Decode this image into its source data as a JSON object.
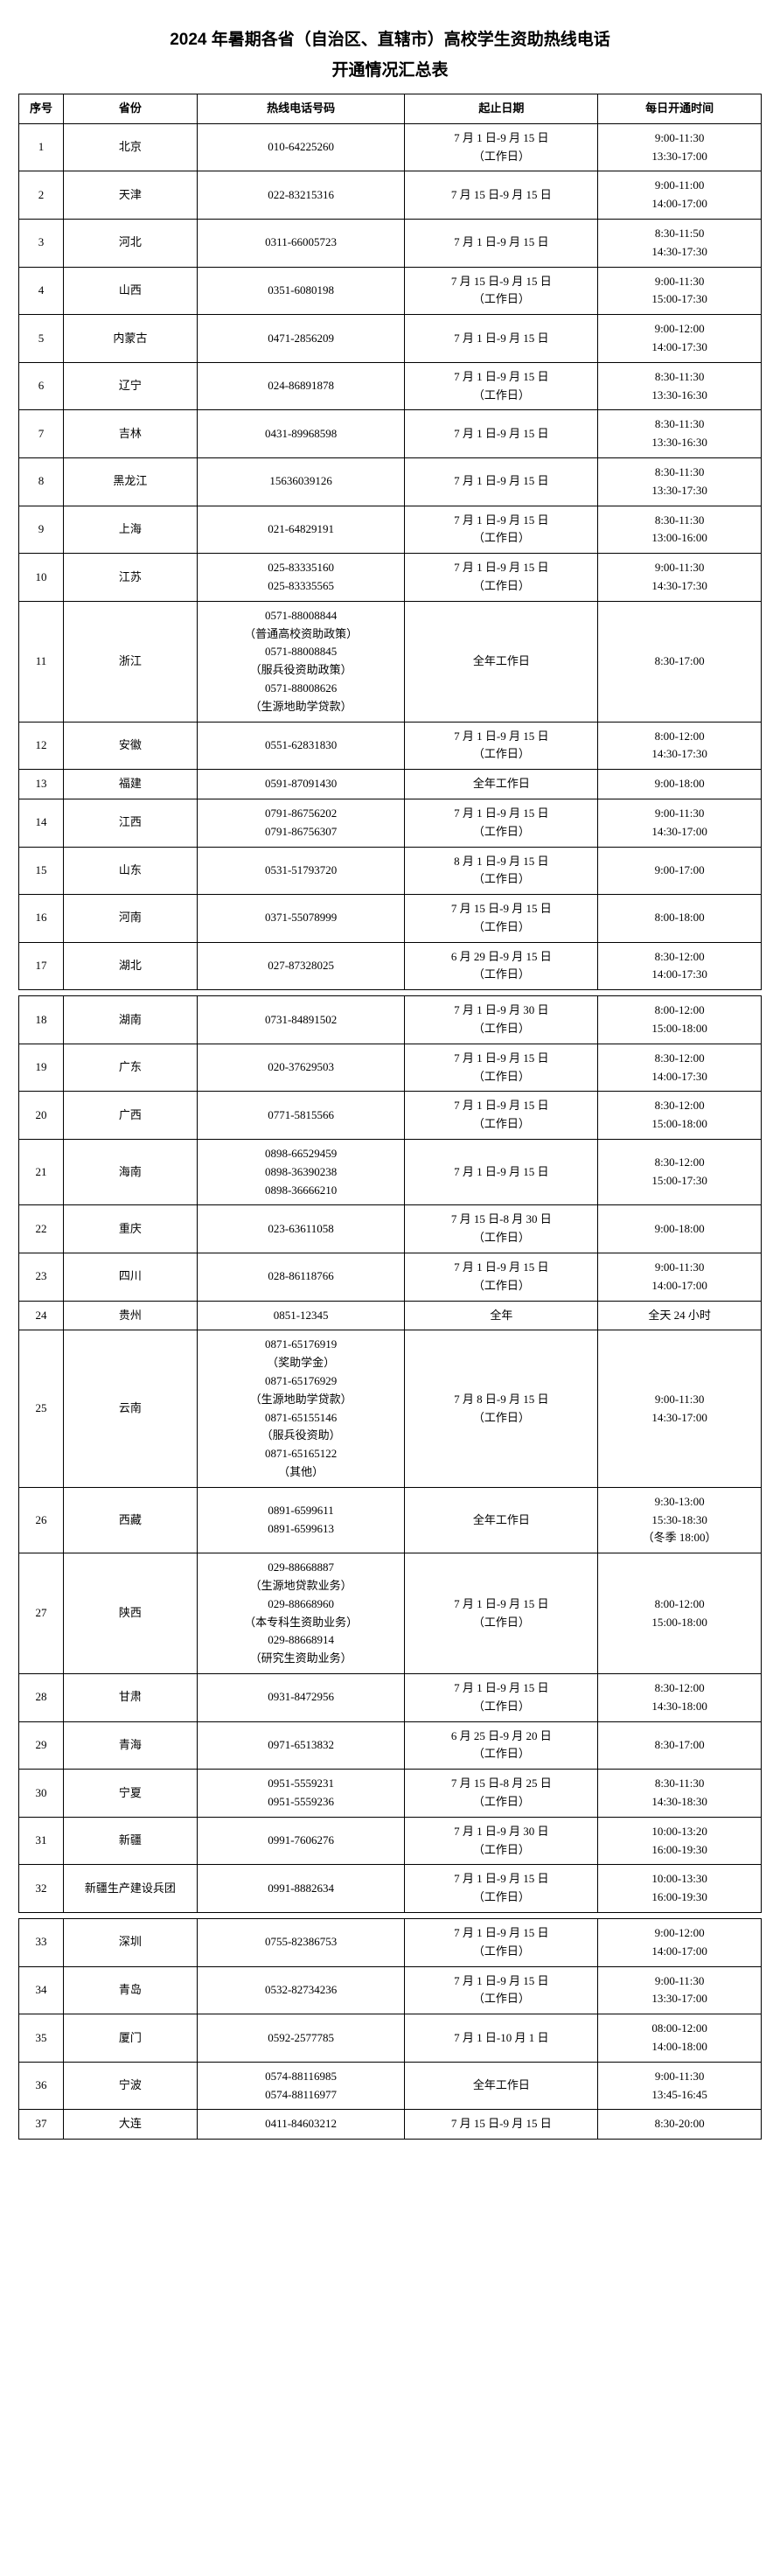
{
  "title": "2024 年暑期各省（自治区、直辖市）高校学生资助热线电话",
  "subtitle": "开通情况汇总表",
  "headers": {
    "idx": "序号",
    "province": "省份",
    "phone": "热线电话号码",
    "dates": "起止日期",
    "hours": "每日开通时间"
  },
  "rows": [
    {
      "idx": "1",
      "province": "北京",
      "phone": "010-64225260",
      "dates": "7 月 1 日-9 月 15 日\n（工作日）",
      "hours": "9:00-11:30\n13:30-17:00"
    },
    {
      "idx": "2",
      "province": "天津",
      "phone": "022-83215316",
      "dates": "7 月 15 日-9 月 15 日",
      "hours": "9:00-11:00\n14:00-17:00"
    },
    {
      "idx": "3",
      "province": "河北",
      "phone": "0311-66005723",
      "dates": "7 月 1 日-9 月 15 日",
      "hours": "8:30-11:50\n14:30-17:30"
    },
    {
      "idx": "4",
      "province": "山西",
      "phone": "0351-6080198",
      "dates": "7 月 15 日-9 月 15 日\n（工作日）",
      "hours": "9:00-11:30\n15:00-17:30"
    },
    {
      "idx": "5",
      "province": "内蒙古",
      "phone": "0471-2856209",
      "dates": "7 月 1 日-9 月 15 日",
      "hours": "9:00-12:00\n14:00-17:30"
    },
    {
      "idx": "6",
      "province": "辽宁",
      "phone": "024-86891878",
      "dates": "7 月 1 日-9 月 15 日\n（工作日）",
      "hours": "8:30-11:30\n13:30-16:30"
    },
    {
      "idx": "7",
      "province": "吉林",
      "phone": "0431-89968598",
      "dates": "7 月 1 日-9 月 15 日",
      "hours": "8:30-11:30\n13:30-16:30"
    },
    {
      "idx": "8",
      "province": "黑龙江",
      "phone": "15636039126",
      "dates": "7 月 1 日-9 月 15 日",
      "hours": "8:30-11:30\n13:30-17:30"
    },
    {
      "idx": "9",
      "province": "上海",
      "phone": "021-64829191",
      "dates": "7 月 1 日-9 月 15 日\n（工作日）",
      "hours": "8:30-11:30\n13:00-16:00"
    },
    {
      "idx": "10",
      "province": "江苏",
      "phone": "025-83335160\n025-83335565",
      "dates": "7 月 1 日-9 月 15 日\n（工作日）",
      "hours": "9:00-11:30\n14:30-17:30"
    },
    {
      "idx": "11",
      "province": "浙江",
      "phone": "0571-88008844\n（普通高校资助政策）\n0571-88008845\n（服兵役资助政策）\n0571-88008626\n（生源地助学贷款）",
      "dates": "全年工作日",
      "hours": "8:30-17:00"
    },
    {
      "idx": "12",
      "province": "安徽",
      "phone": "0551-62831830",
      "dates": "7 月 1 日-9 月 15 日\n（工作日）",
      "hours": "8:00-12:00\n14:30-17:30"
    },
    {
      "idx": "13",
      "province": "福建",
      "phone": "0591-87091430",
      "dates": "全年工作日",
      "hours": "9:00-18:00"
    },
    {
      "idx": "14",
      "province": "江西",
      "phone": "0791-86756202\n0791-86756307",
      "dates": "7 月 1 日-9 月 15 日\n（工作日）",
      "hours": "9:00-11:30\n14:30-17:00"
    },
    {
      "idx": "15",
      "province": "山东",
      "phone": "0531-51793720",
      "dates": "8 月 1 日-9 月 15 日\n（工作日）",
      "hours": "9:00-17:00"
    },
    {
      "idx": "16",
      "province": "河南",
      "phone": "0371-55078999",
      "dates": "7 月 15 日-9 月 15 日\n（工作日）",
      "hours": "8:00-18:00"
    },
    {
      "idx": "17",
      "province": "湖北",
      "phone": "027-87328025",
      "dates": "6 月 29 日-9 月 15 日\n（工作日）",
      "hours": "8:30-12:00\n14:00-17:30"
    },
    {
      "idx": "18",
      "province": "湖南",
      "phone": "0731-84891502",
      "dates": "7 月 1 日-9 月 30 日\n（工作日）",
      "hours": "8:00-12:00\n15:00-18:00"
    },
    {
      "idx": "19",
      "province": "广东",
      "phone": "020-37629503",
      "dates": "7 月 1 日-9 月 15 日\n（工作日）",
      "hours": "8:30-12:00\n14:00-17:30"
    },
    {
      "idx": "20",
      "province": "广西",
      "phone": "0771-5815566",
      "dates": "7 月 1 日-9 月 15 日\n（工作日）",
      "hours": "8:30-12:00\n15:00-18:00"
    },
    {
      "idx": "21",
      "province": "海南",
      "phone": "0898-66529459\n0898-36390238\n0898-36666210",
      "dates": "7 月 1 日-9 月 15 日",
      "hours": "8:30-12:00\n15:00-17:30"
    },
    {
      "idx": "22",
      "province": "重庆",
      "phone": "023-63611058",
      "dates": "7 月 15 日-8 月 30 日\n（工作日）",
      "hours": "9:00-18:00"
    },
    {
      "idx": "23",
      "province": "四川",
      "phone": "028-86118766",
      "dates": "7 月 1 日-9 月 15 日\n（工作日）",
      "hours": "9:00-11:30\n14:00-17:00"
    },
    {
      "idx": "24",
      "province": "贵州",
      "phone": "0851-12345",
      "dates": "全年",
      "hours": "全天 24 小时"
    },
    {
      "idx": "25",
      "province": "云南",
      "phone": "0871-65176919\n（奖助学金）\n0871-65176929\n（生源地助学贷款）\n0871-65155146\n（服兵役资助）\n0871-65165122\n（其他）",
      "dates": "7 月 8 日-9 月 15 日\n（工作日）",
      "hours": "9:00-11:30\n14:30-17:00"
    },
    {
      "idx": "26",
      "province": "西藏",
      "phone": "0891-6599611\n0891-6599613",
      "dates": "全年工作日",
      "hours": "9:30-13:00\n15:30-18:30\n（冬季 18:00）"
    },
    {
      "idx": "27",
      "province": "陕西",
      "phone": "029-88668887\n（生源地贷款业务）\n029-88668960\n（本专科生资助业务）\n029-88668914\n（研究生资助业务）",
      "dates": "7 月 1 日-9 月 15 日\n（工作日）",
      "hours": "8:00-12:00\n15:00-18:00"
    },
    {
      "idx": "28",
      "province": "甘肃",
      "phone": "0931-8472956",
      "dates": "7 月 1 日-9 月 15 日\n（工作日）",
      "hours": "8:30-12:00\n14:30-18:00"
    },
    {
      "idx": "29",
      "province": "青海",
      "phone": "0971-6513832",
      "dates": "6 月 25 日-9 月 20 日\n（工作日）",
      "hours": "8:30-17:00"
    },
    {
      "idx": "30",
      "province": "宁夏",
      "phone": "0951-5559231\n0951-5559236",
      "dates": "7 月 15 日-8 月 25 日\n（工作日）",
      "hours": "8:30-11:30\n14:30-18:30"
    },
    {
      "idx": "31",
      "province": "新疆",
      "phone": "0991-7606276",
      "dates": "7 月 1 日-9 月 30 日\n（工作日）",
      "hours": "10:00-13:20\n16:00-19:30"
    },
    {
      "idx": "32",
      "province": "新疆生产建设兵团",
      "phone": "0991-8882634",
      "dates": "7 月 1 日-9 月 15 日\n（工作日）",
      "hours": "10:00-13:30\n16:00-19:30"
    },
    {
      "idx": "33",
      "province": "深圳",
      "phone": "0755-82386753",
      "dates": "7 月 1 日-9 月 15 日\n（工作日）",
      "hours": "9:00-12:00\n14:00-17:00"
    },
    {
      "idx": "34",
      "province": "青岛",
      "phone": "0532-82734236",
      "dates": "7 月 1 日-9 月 15 日\n（工作日）",
      "hours": "9:00-11:30\n13:30-17:00"
    },
    {
      "idx": "35",
      "province": "厦门",
      "phone": "0592-2577785",
      "dates": "7 月 1 日-10 月 1 日",
      "hours": "08:00-12:00\n14:00-18:00"
    },
    {
      "idx": "36",
      "province": "宁波",
      "phone": "0574-88116985\n0574-88116977",
      "dates": "全年工作日",
      "hours": "9:00-11:30\n13:45-16:45"
    },
    {
      "idx": "37",
      "province": "大连",
      "phone": "0411-84603212",
      "dates": "7 月 15 日-9 月 15 日",
      "hours": "8:30-20:00"
    }
  ],
  "gaps_after": [
    17,
    32
  ]
}
